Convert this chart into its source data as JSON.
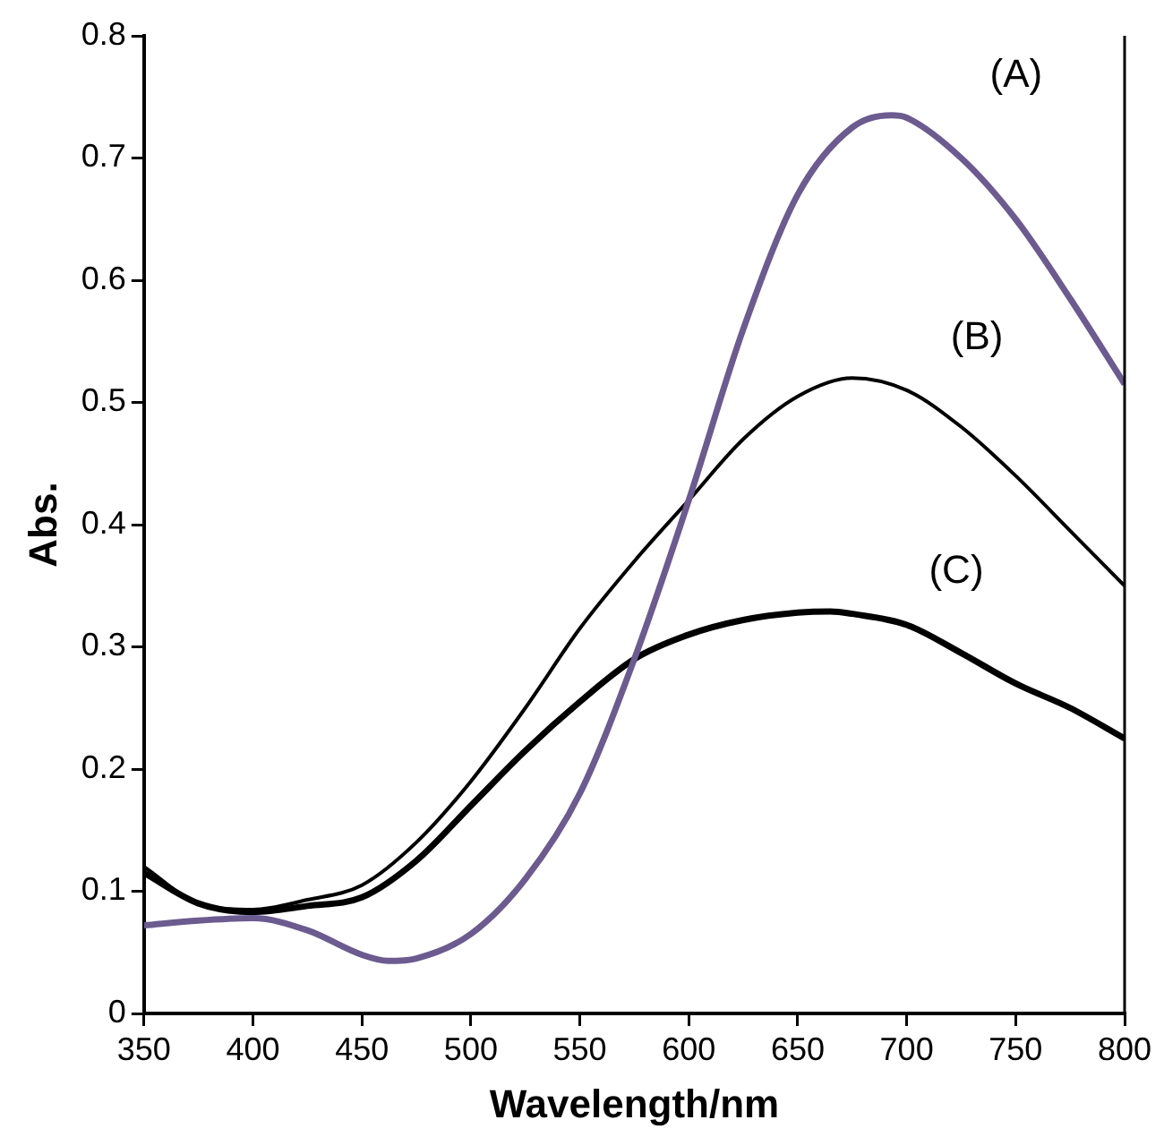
{
  "chart_data": {
    "type": "line",
    "xlabel": "Wavelength/nm",
    "ylabel": "Abs.",
    "xlim": [
      350,
      800
    ],
    "xticks": [
      350,
      400,
      450,
      500,
      550,
      600,
      650,
      700,
      750,
      800
    ],
    "ylim": [
      0,
      0.8
    ],
    "yticks": [
      0,
      0.1,
      0.2,
      0.3,
      0.4,
      0.5,
      0.6,
      0.7,
      0.8
    ],
    "grid": false,
    "legend": false,
    "marker": "none",
    "line_style": "solid",
    "series": [
      {
        "name": "(A)",
        "color": "#6b5b8f",
        "x": [
          350,
          375,
          400,
          425,
          450,
          462,
          475,
          500,
          525,
          550,
          575,
          600,
          625,
          650,
          675,
          693,
          700,
          725,
          750,
          775,
          800
        ],
        "values": [
          0.072,
          0.076,
          0.078,
          0.068,
          0.048,
          0.043,
          0.045,
          0.065,
          0.11,
          0.18,
          0.29,
          0.42,
          0.56,
          0.67,
          0.725,
          0.735,
          0.733,
          0.7,
          0.65,
          0.585,
          0.515
        ]
      },
      {
        "name": "(B)",
        "color": "#000000",
        "x": [
          350,
          375,
          400,
          425,
          450,
          475,
          500,
          525,
          550,
          575,
          600,
          625,
          650,
          675,
          700,
          725,
          750,
          775,
          800
        ],
        "values": [
          0.12,
          0.09,
          0.085,
          0.093,
          0.105,
          0.14,
          0.19,
          0.25,
          0.315,
          0.37,
          0.42,
          0.47,
          0.505,
          0.52,
          0.51,
          0.48,
          0.44,
          0.395,
          0.35
        ]
      },
      {
        "name": "(C)",
        "color": "#000000",
        "x": [
          350,
          375,
          400,
          425,
          450,
          475,
          500,
          525,
          550,
          575,
          600,
          625,
          650,
          665,
          675,
          700,
          725,
          750,
          775,
          800
        ],
        "values": [
          0.115,
          0.09,
          0.083,
          0.088,
          0.095,
          0.125,
          0.17,
          0.215,
          0.255,
          0.29,
          0.31,
          0.322,
          0.328,
          0.329,
          0.327,
          0.318,
          0.295,
          0.27,
          0.25,
          0.225
        ]
      }
    ]
  }
}
